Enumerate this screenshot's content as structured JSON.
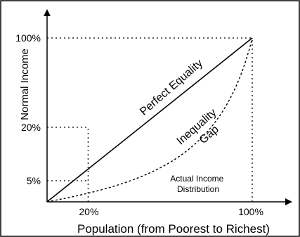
{
  "chart_data": {
    "type": "line",
    "xlabel": "Population (from Poorest to Richest)",
    "ylabel": "Normal Income",
    "x_ticks": [
      "20%",
      "100%"
    ],
    "y_ticks": [
      "100%",
      "20%",
      "5%"
    ],
    "series": [
      {
        "name": "Perfect Equality",
        "style": "solid",
        "x": [
          0,
          100
        ],
        "y": [
          0,
          100
        ]
      },
      {
        "name": "Actual Income Distribution",
        "style": "dotted",
        "x": [
          0,
          20,
          40,
          60,
          80,
          90,
          100
        ],
        "y": [
          0,
          5,
          10,
          18,
          33,
          50,
          100
        ]
      }
    ],
    "reference_lines": [
      {
        "x": [
          0,
          100
        ],
        "y": [
          100,
          100
        ],
        "style": "dotted"
      },
      {
        "x": [
          100,
          100
        ],
        "y": [
          0,
          100
        ],
        "style": "dotted"
      },
      {
        "x": [
          0,
          20
        ],
        "y": [
          20,
          20
        ],
        "style": "dotted"
      },
      {
        "x": [
          20,
          20
        ],
        "y": [
          0,
          20
        ],
        "style": "dotted"
      },
      {
        "x": [
          0,
          20
        ],
        "y": [
          5,
          5
        ],
        "style": "dotted"
      }
    ],
    "annotations": [
      {
        "text_lines": [
          "Inequality",
          "Gap"
        ]
      }
    ],
    "grid": false,
    "legend": "none"
  },
  "colors": {
    "line": "#000000",
    "background": "#ffffff",
    "border": "#000000"
  }
}
